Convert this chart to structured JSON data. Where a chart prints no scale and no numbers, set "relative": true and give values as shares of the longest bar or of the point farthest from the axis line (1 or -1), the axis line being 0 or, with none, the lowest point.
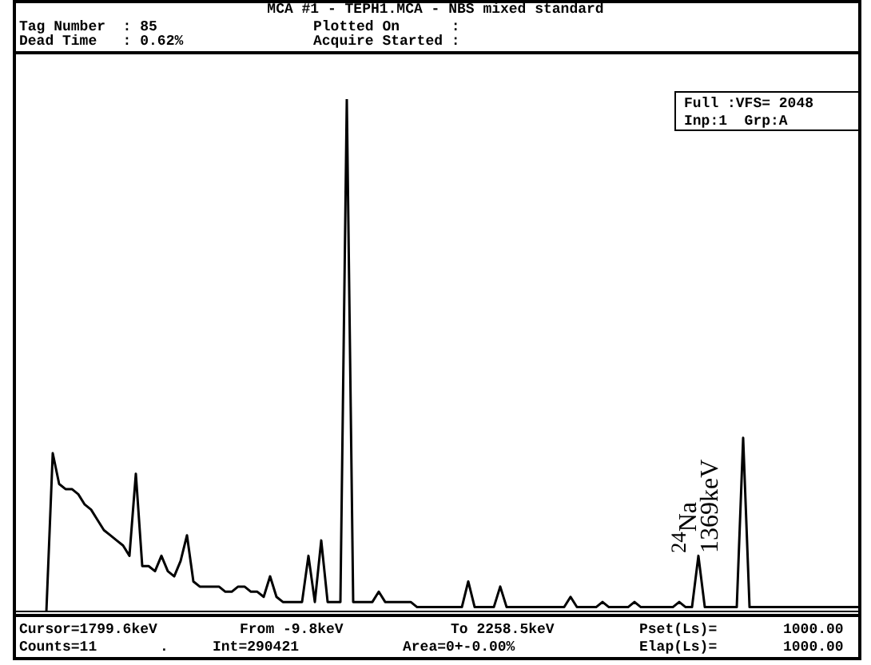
{
  "chart_data": {
    "type": "line",
    "title": "MCA #1 - TEPH1.MCA - NBS mixed standard",
    "categories": [
      null,
      null,
      null,
      null,
      null,
      null,
      null,
      null,
      null,
      null,
      null,
      null,
      null,
      null,
      null,
      null,
      null,
      null,
      null,
      null,
      null,
      null,
      null,
      null,
      null,
      null,
      null,
      null,
      null,
      null,
      null,
      null,
      null,
      null,
      null,
      null,
      null,
      null,
      null,
      null,
      null,
      null,
      null,
      null,
      null,
      null,
      null,
      null,
      null,
      null,
      null,
      null,
      null,
      null,
      null,
      null,
      null,
      null,
      null,
      null,
      null,
      null,
      null,
      null,
      null,
      null,
      null,
      null,
      null,
      null,
      null,
      null,
      null,
      null,
      null,
      null,
      null,
      null,
      null,
      null,
      null,
      null,
      null,
      null,
      null,
      null,
      null,
      null,
      null,
      null,
      null,
      null,
      null,
      null,
      null,
      null,
      null,
      null,
      null,
      null,
      null,
      null,
      null,
      null,
      null,
      null,
      null,
      null,
      null,
      null,
      null,
      null,
      null,
      null,
      null,
      null,
      null,
      null,
      null,
      null,
      null,
      null,
      null,
      null,
      null,
      null,
      null,
      null,
      null,
      null,
      null,
      null,
      null
    ],
    "series": [
      {
        "color": "#000000",
        "values": [
          0,
          0,
          0,
          0,
          0,
          0,
          0.31,
          0.25,
          0.24,
          0.24,
          0.23,
          0.21,
          0.2,
          0.18,
          0.16,
          0.15,
          0.14,
          0.13,
          0.11,
          0.27,
          0.09,
          0.09,
          0.08,
          0.11,
          0.08,
          0.07,
          0.1,
          0.15,
          0.06,
          0.05,
          0.05,
          0.05,
          0.05,
          0.04,
          0.04,
          0.05,
          0.05,
          0.04,
          0.04,
          0.03,
          0.07,
          0.03,
          0.02,
          0.02,
          0.02,
          0.02,
          0.11,
          0.02,
          0.14,
          0.02,
          0.02,
          0.02,
          1,
          0.02,
          0.02,
          0.02,
          0.02,
          0.04,
          0.02,
          0.02,
          0.02,
          0.02,
          0.02,
          0.01,
          0.01,
          0.01,
          0.01,
          0.01,
          0.01,
          0.01,
          0.01,
          0.06,
          0.01,
          0.01,
          0.01,
          0.01,
          0.05,
          0.01,
          0.01,
          0.01,
          0.01,
          0.01,
          0.01,
          0.01,
          0.01,
          0.01,
          0.01,
          0.03,
          0.01,
          0.01,
          0.01,
          0.01,
          0.02,
          0.01,
          0.01,
          0.01,
          0.01,
          0.02,
          0.01,
          0.01,
          0.01,
          0.01,
          0.01,
          0.01,
          0.02,
          0.01,
          0.01,
          0.11,
          0.01,
          0.01,
          0.01,
          0.01,
          0.01,
          0.01,
          0.34,
          0.01,
          0.01,
          0.01,
          0.01,
          0.01,
          0.01,
          0.01,
          0.01,
          0.01,
          0.01,
          0.01,
          0.01,
          0.01,
          0.01,
          0.01,
          0.01,
          0.01,
          0.01
        ]
      }
    ],
    "relative": true,
    "marker": "none",
    "line_style": "solid",
    "grid": false,
    "legend": false,
    "annotations": [
      "Tag Number  : 85",
      "Dead Time   : 0.62%",
      "Plotted On      :",
      "Acquire Started :",
      "Full :VFS= 2048",
      "Inp:1  Grp:A",
      "Cursor=1799.6keV",
      "From -9.8keV",
      "To 2258.5keV",
      "Pset(Ls)=",
      "1000.00",
      "Counts=11",
      ".",
      "Int=290421",
      "Area=0+-0.00%",
      "Elap(Ls)=",
      "1000.00",
      "$^{24}$Na",
      "1369keV"
    ]
  }
}
